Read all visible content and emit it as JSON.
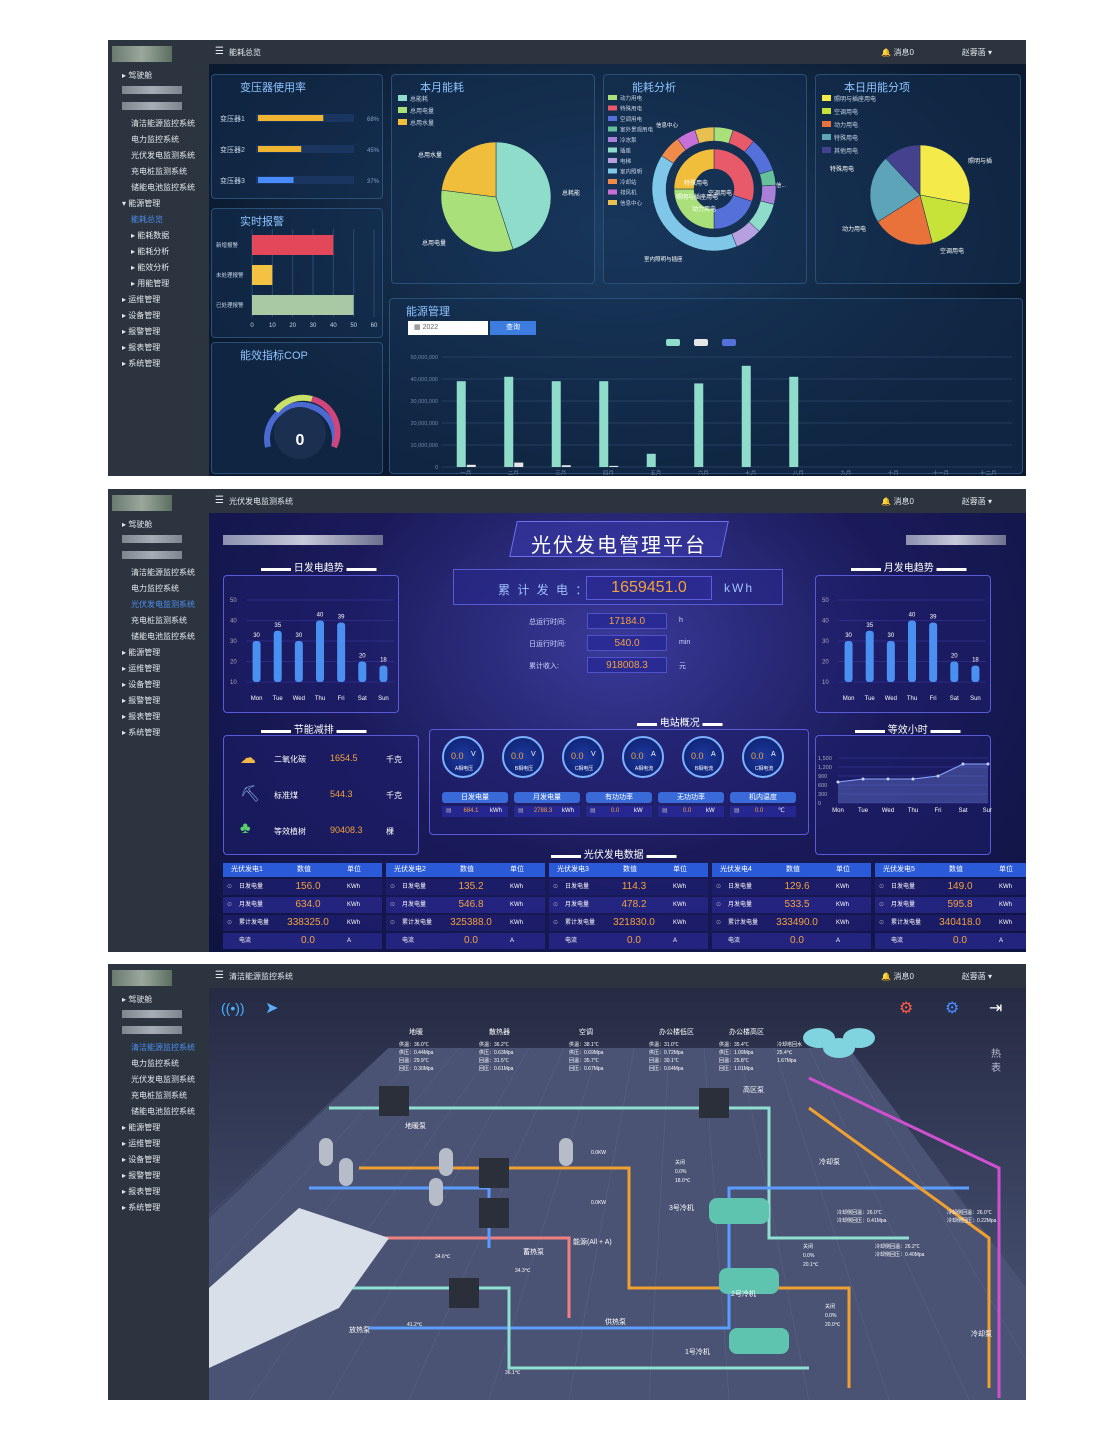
{
  "common": {
    "message_label": "消息0",
    "user_name": "赵蓉菡",
    "menu_top": "驾驶舱",
    "subsystems": [
      "清洁能源监控系统",
      "电力监控系统",
      "光伏发电监测系统",
      "充电桩监测系统",
      "储能电池监控系统"
    ],
    "menu_groups": [
      "能源管理",
      "运维管理",
      "设备管理",
      "报警管理",
      "报表管理",
      "系统管理"
    ]
  },
  "screen1": {
    "page_title": "能耗总览",
    "energy_sub": [
      "能耗总览",
      "能耗数据",
      "能耗分析",
      "能效分析",
      "用能管理"
    ],
    "transformer": {
      "title": "变压器使用率",
      "items": [
        {
          "name": "变压器1",
          "pct": "68%",
          "value": 68
        },
        {
          "name": "变压器2",
          "pct": "45%",
          "value": 45
        },
        {
          "name": "变压器3",
          "pct": "37%",
          "value": 37
        }
      ]
    },
    "energy_month": {
      "title": "本月能耗",
      "legend": [
        "总能耗",
        "总用电量",
        "总用水量"
      ],
      "slices": [
        {
          "label": "总耗能",
          "value": 45,
          "color": "#8fdccb"
        },
        {
          "label": "总用电量",
          "value": 32,
          "color": "#a9e07a"
        },
        {
          "label": "总用水量",
          "value": 23,
          "color": "#f0be3a"
        }
      ]
    },
    "energy_analysis": {
      "title": "能耗分析",
      "legend": [
        "动力用电",
        "特殊用电",
        "空调用电",
        "室外景观用电",
        "冷冻泵",
        "插座",
        "电梯",
        "室内照明",
        "冷却站",
        "排风机",
        "信息中心"
      ],
      "inner": [
        "特殊用电",
        "空调用电",
        "动力用电",
        "照明与插座用电"
      ],
      "outer_labels": [
        "信息中心",
        "照明与插座用电",
        "室内照明与插座"
      ]
    },
    "daily_items": {
      "title": "本日用能分项",
      "legend": [
        "照明与插座用电",
        "空调用电",
        "动力用电",
        "特殊用电",
        "其他用电"
      ],
      "slices": [
        {
          "label": "照明与插座用电",
          "value": 28,
          "color": "#f4ea4a"
        },
        {
          "label": "空调用电",
          "value": 18,
          "color": "#c7e33a"
        },
        {
          "label": "动力用电",
          "value": 20,
          "color": "#e8723a"
        },
        {
          "label": "特殊用电",
          "value": 22,
          "color": "#5da4b8"
        },
        {
          "label": "其他用电",
          "value": 12,
          "color": "#44428e"
        }
      ]
    },
    "alarm": {
      "title": "实时报警",
      "categories": [
        "新增报警",
        "未处理报警",
        "已处理报警"
      ],
      "values": [
        40,
        10,
        50
      ],
      "colors": [
        "#e2475a",
        "#f4c243",
        "#a9c9a4"
      ],
      "ticks": [
        "0",
        "10",
        "20",
        "30",
        "40",
        "50",
        "60"
      ]
    },
    "cop": {
      "title": "能效指标COP",
      "value": "0"
    },
    "energy_mgmt": {
      "title": "能源管理",
      "date": "2022",
      "query": "查询"
    },
    "chart_data": {
      "type": "bar",
      "categories": [
        "一月",
        "二月",
        "三月",
        "四月",
        "五月",
        "六月",
        "七月",
        "八月",
        "九月",
        "十月",
        "十一月",
        "十二月"
      ],
      "series": [
        {
          "values": [
            39000000,
            41000000,
            39000000,
            39000000,
            6000000,
            38000000,
            46000000,
            41000000,
            0,
            0,
            0,
            0
          ],
          "color": "#8fdccb"
        },
        {
          "values": [
            1000000,
            2000000,
            800000,
            500000,
            0,
            0,
            0,
            0,
            0,
            0,
            0,
            0
          ],
          "color": "#e6e6e6"
        },
        {
          "values": [
            0,
            0,
            0,
            0,
            0,
            0,
            0,
            0,
            0,
            0,
            0,
            0
          ],
          "color": "#5570d8"
        }
      ],
      "yticks": [
        "50,000,000",
        "40,000,000",
        "30,000,000",
        "20,000,000",
        "10,000,000",
        "0"
      ],
      "ylim": [
        0,
        50000000
      ]
    }
  },
  "screen2": {
    "page_title": "光伏发电监测系统",
    "platform_title": "光伏发电管理平台",
    "daily_trend": {
      "title": "日发电趋势",
      "chart_data": {
        "type": "bar",
        "categories": [
          "Mon",
          "Tue",
          "Wed",
          "Thu",
          "Fri",
          "Sat",
          "Sun"
        ],
        "values": [
          30,
          35,
          30,
          40,
          39,
          20,
          18
        ],
        "yticks": [
          "50",
          "40",
          "30",
          "20",
          "10"
        ]
      }
    },
    "monthly_trend": {
      "title": "月发电趋势",
      "chart_data": {
        "type": "bar",
        "categories": [
          "Mon",
          "Tue",
          "Wed",
          "Thu",
          "Fri",
          "Sat",
          "Sun"
        ],
        "values": [
          30,
          35,
          30,
          40,
          39,
          20,
          18
        ],
        "yticks": [
          "50",
          "40",
          "30",
          "20",
          "10"
        ]
      }
    },
    "total": {
      "label": "累 计 发 电 ：",
      "value": "1659451.0",
      "unit": "kWh"
    },
    "stats": [
      {
        "label": "总运行时间:",
        "value": "17184.0",
        "unit": "h"
      },
      {
        "label": "日运行时间:",
        "value": "540.0",
        "unit": "min"
      },
      {
        "label": "累计收入:",
        "value": "918008.3",
        "unit": "元"
      }
    ],
    "saving": {
      "title": "节能减排",
      "items": [
        {
          "label": "二氧化碳",
          "value": "1654.5",
          "unit": "千克"
        },
        {
          "label": "标准煤",
          "value": "544.3",
          "unit": "千克"
        },
        {
          "label": "等效植树",
          "value": "90408.3",
          "unit": "棵"
        }
      ]
    },
    "station": {
      "title": "电站概况",
      "gauges": [
        {
          "v": "0.0",
          "u": "V",
          "n": "A相电压"
        },
        {
          "v": "0.0",
          "u": "V",
          "n": "B相电压"
        },
        {
          "v": "0.0",
          "u": "V",
          "n": "C相电压"
        },
        {
          "v": "0.0",
          "u": "A",
          "n": "A相电流"
        },
        {
          "v": "0.0",
          "u": "A",
          "n": "B相电流"
        },
        {
          "v": "0.0",
          "u": "A",
          "n": "C相电流"
        }
      ],
      "metrics": [
        {
          "n": "日发电量",
          "v": "684.1",
          "u": "kWh"
        },
        {
          "n": "月发电量",
          "v": "2788.3",
          "u": "kWh"
        },
        {
          "n": "有功功率",
          "v": "0.0",
          "u": "kW"
        },
        {
          "n": "无功功率",
          "v": "0.0",
          "u": "kW"
        },
        {
          "n": "机内温度",
          "v": "0.0",
          "u": "℃"
        }
      ]
    },
    "hours": {
      "title": "等效小时",
      "chart_data": {
        "type": "line",
        "categories": [
          "Mon",
          "Tue",
          "Wed",
          "Thu",
          "Fri",
          "Sat",
          "Sun"
        ],
        "values": [
          700,
          800,
          800,
          800,
          900,
          1300,
          1300
        ],
        "yticks": [
          "1,500",
          "1,200",
          "900",
          "600",
          "300",
          "0"
        ]
      }
    },
    "pv_data": {
      "title": "光伏发电数据",
      "col_headers": [
        "数值",
        "单位"
      ],
      "row_labels": [
        "日发电量",
        "月发电量",
        "累计发电量",
        "电流"
      ],
      "units": [
        "KWh",
        "KWh",
        "KWh",
        "A"
      ],
      "groups": [
        {
          "name": "光伏发电1",
          "values": [
            "156.0",
            "634.0",
            "338325.0",
            "0.0"
          ]
        },
        {
          "name": "光伏发电2",
          "values": [
            "135.2",
            "546.8",
            "325388.0",
            "0.0"
          ]
        },
        {
          "name": "光伏发电3",
          "values": [
            "114.3",
            "478.2",
            "321830.0",
            "0.0"
          ]
        },
        {
          "name": "光伏发电4",
          "values": [
            "129.6",
            "533.5",
            "333490.0",
            "0.0"
          ]
        },
        {
          "name": "光伏发电5",
          "values": [
            "149.0",
            "595.8",
            "340418.0",
            "0.0"
          ]
        }
      ]
    }
  },
  "screen3": {
    "page_title": "清洁能源监控系统",
    "hot_label": "热表",
    "zones": [
      {
        "name": "地暖",
        "l": [
          "供温：36.0℃",
          "供压：0.44Mpa",
          "回温：29.9℃",
          "回压：0.30Mpa"
        ]
      },
      {
        "name": "散热器",
        "l": [
          "供温：36.2℃",
          "供压：0.63Mpa",
          "回温：31.5℃",
          "回压：0.61Mpa"
        ]
      },
      {
        "name": "空调",
        "l": [
          "供温：38.1℃",
          "供压：0.69Mpa",
          "回温：35.7℃",
          "回压：0.67Mpa"
        ]
      },
      {
        "name": "办公楼低区",
        "l": [
          "供温：31.0℃",
          "供压：0.72Mpa",
          "回温：30.1℃",
          "回压：0.64Mpa"
        ]
      },
      {
        "name": "办公楼高区",
        "l": [
          "供温：35.4℃",
          "供压：1.09Mpa",
          "回温：25.8℃",
          "回压：1.01Mpa"
        ]
      }
    ],
    "cooling_tower": [
      "冷却塔回水",
      "25.4℃",
      "1.67Mpa"
    ],
    "labels": [
      "地暖泵",
      "高区泵",
      "冷却泵",
      "3号冷机",
      "2号冷机",
      "1号冷机",
      "冷却泵",
      "蓄热泵",
      "供热泵",
      "放热泵",
      "能源(All + A)"
    ],
    "power": [
      "0.0KW",
      "0.0KW"
    ],
    "chiller_status": [
      {
        "s": "关闭",
        "p": "0.0%",
        "t": "18.0℃"
      },
      {
        "s": "关闭",
        "p": "0.0%",
        "t": "20.1℃"
      },
      {
        "s": "关闭",
        "p": "0.0%",
        "t": "20.0℃"
      }
    ],
    "cool_reading": [
      [
        "冷却侧回温：26.0℃",
        "冷却侧回压：0.41Mpa"
      ],
      [
        "冷却侧回温：26.0℃",
        "冷却侧回压：0.22Mpa"
      ],
      [
        "冷却侧回温：26.2℃",
        "冷却侧回压：0.40Mpa"
      ]
    ],
    "temps": [
      "34.6℃",
      "34.3℃",
      "41.2℃",
      "36.1℃"
    ]
  }
}
